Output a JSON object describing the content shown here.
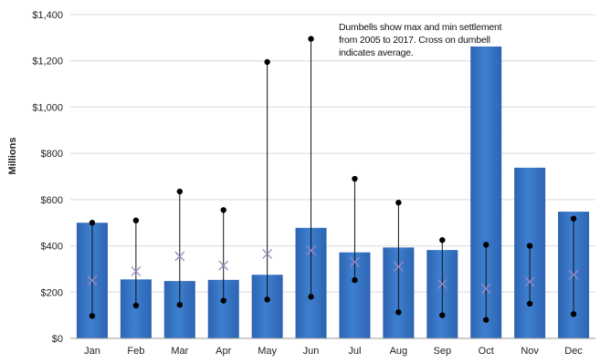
{
  "chart_data": {
    "type": "bar",
    "categories": [
      "Jan",
      "Feb",
      "Mar",
      "Apr",
      "May",
      "Jun",
      "Jul",
      "Aug",
      "Sep",
      "Oct",
      "Nov",
      "Dec"
    ],
    "ylabel": "Millions",
    "ylim": [
      0,
      1400
    ],
    "yticks": [
      0,
      200,
      400,
      600,
      800,
      1000,
      1200,
      1400
    ],
    "ytick_labels": [
      "$0",
      "$200",
      "$400",
      "$600",
      "$800",
      "$1,000",
      "$1,200",
      "$1,400"
    ],
    "grid": true,
    "bar_color": "#3f7fd0",
    "annotation": "Dumbells show max and min settlement from 2005 to 2017. Cross on dumbell indicates average.",
    "series": [
      {
        "values": [
          500,
          255,
          248,
          253,
          275,
          478,
          372,
          393,
          382,
          1262,
          738,
          548
        ]
      },
      {
        "kind": "max",
        "values": [
          500,
          510,
          635,
          555,
          1195,
          1295,
          690,
          587,
          425,
          405,
          400,
          518
        ]
      },
      {
        "kind": "min",
        "values": [
          97,
          142,
          145,
          163,
          168,
          180,
          252,
          113,
          100,
          80,
          150,
          105
        ]
      },
      {
        "kind": "average",
        "values": [
          250,
          290,
          355,
          315,
          365,
          380,
          330,
          310,
          235,
          215,
          245,
          275
        ]
      }
    ]
  }
}
